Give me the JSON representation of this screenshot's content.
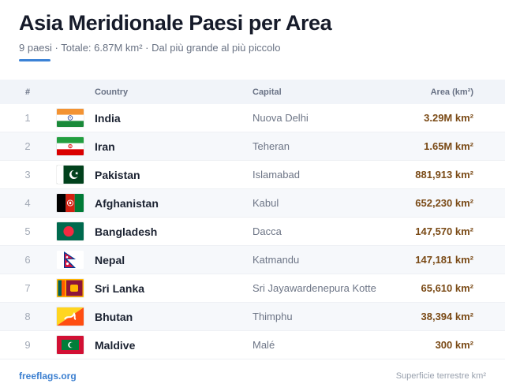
{
  "header": {
    "title": "Asia Meridionale Paesi per Area",
    "subtitle": "9 paesi · Totale: 6.87M km² · Dal più grande al più piccolo"
  },
  "columns": {
    "num": "#",
    "country": "Country",
    "capital": "Capital",
    "area": "Area (km²)"
  },
  "rows": [
    {
      "num": "1",
      "country": "India",
      "capital": "Nuova Delhi",
      "area": "3.29M km²",
      "flag": "india-flag-icon"
    },
    {
      "num": "2",
      "country": "Iran",
      "capital": "Teheran",
      "area": "1.65M km²",
      "flag": "iran-flag-icon"
    },
    {
      "num": "3",
      "country": "Pakistan",
      "capital": "Islamabad",
      "area": "881,913 km²",
      "flag": "pakistan-flag-icon"
    },
    {
      "num": "4",
      "country": "Afghanistan",
      "capital": "Kabul",
      "area": "652,230 km²",
      "flag": "afghanistan-flag-icon"
    },
    {
      "num": "5",
      "country": "Bangladesh",
      "capital": "Dacca",
      "area": "147,570 km²",
      "flag": "bangladesh-flag-icon"
    },
    {
      "num": "6",
      "country": "Nepal",
      "capital": "Katmandu",
      "area": "147,181 km²",
      "flag": "nepal-flag-icon"
    },
    {
      "num": "7",
      "country": "Sri Lanka",
      "capital": "Sri Jayawardenepura Kotte",
      "area": "65,610 km²",
      "flag": "sri-lanka-flag-icon"
    },
    {
      "num": "8",
      "country": "Bhutan",
      "capital": "Thimphu",
      "area": "38,394 km²",
      "flag": "bhutan-flag-icon"
    },
    {
      "num": "9",
      "country": "Maldive",
      "capital": "Malé",
      "area": "300 km²",
      "flag": "maldives-flag-icon"
    }
  ],
  "footer": {
    "link": "freeflags.org",
    "note": "Superficie terrestre km²"
  },
  "colors": {
    "accent": "#3b82d6",
    "area_text": "#7a4a16",
    "header_bg": "#f1f4f9"
  }
}
